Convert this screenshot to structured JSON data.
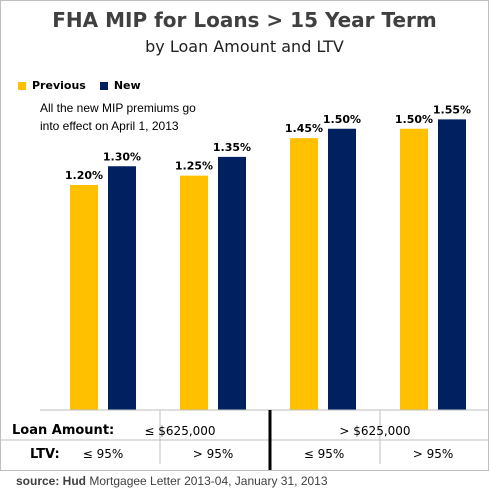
{
  "title": "FHA MIP for Loans >  15 Year Term",
  "subtitle": "by Loan Amount and LTV",
  "legend": [
    {
      "name": "Previous",
      "color": "#FFC000"
    },
    {
      "name": "New",
      "color": "#002060"
    }
  ],
  "annotation": "All the new MIP premiums go into effect on April 1, 2013",
  "axis": {
    "loan_amount_label": "Loan Amount:",
    "ltv_label": "LTV:",
    "loan_groups": [
      "≤ $625,000",
      "> $625,000"
    ],
    "ltv_groups": [
      "≤ 95%",
      "> 95%",
      "≤ 95%",
      "> 95%"
    ]
  },
  "source": {
    "prefix": "source: Hud",
    "text": " Mortgagee Letter 2013-04, January 31, 2013"
  },
  "chart_data": {
    "type": "bar",
    "categories": [
      "≤ $625,000 / ≤ 95%",
      "≤ $625,000 / > 95%",
      "> $625,000 / ≤ 95%",
      "> $625,000 / > 95%"
    ],
    "series": [
      {
        "name": "Previous",
        "values": [
          1.2,
          1.25,
          1.45,
          1.5
        ],
        "labels": [
          "1.20%",
          "1.25%",
          "1.45%",
          "1.50%"
        ],
        "color": "#FFC000"
      },
      {
        "name": "New",
        "values": [
          1.3,
          1.35,
          1.5,
          1.55
        ],
        "labels": [
          "1.30%",
          "1.35%",
          "1.50%",
          "1.55%"
        ],
        "color": "#002060"
      }
    ],
    "ylim": [
      0,
      2.0
    ],
    "grid": false,
    "legend_position": "top-left"
  }
}
